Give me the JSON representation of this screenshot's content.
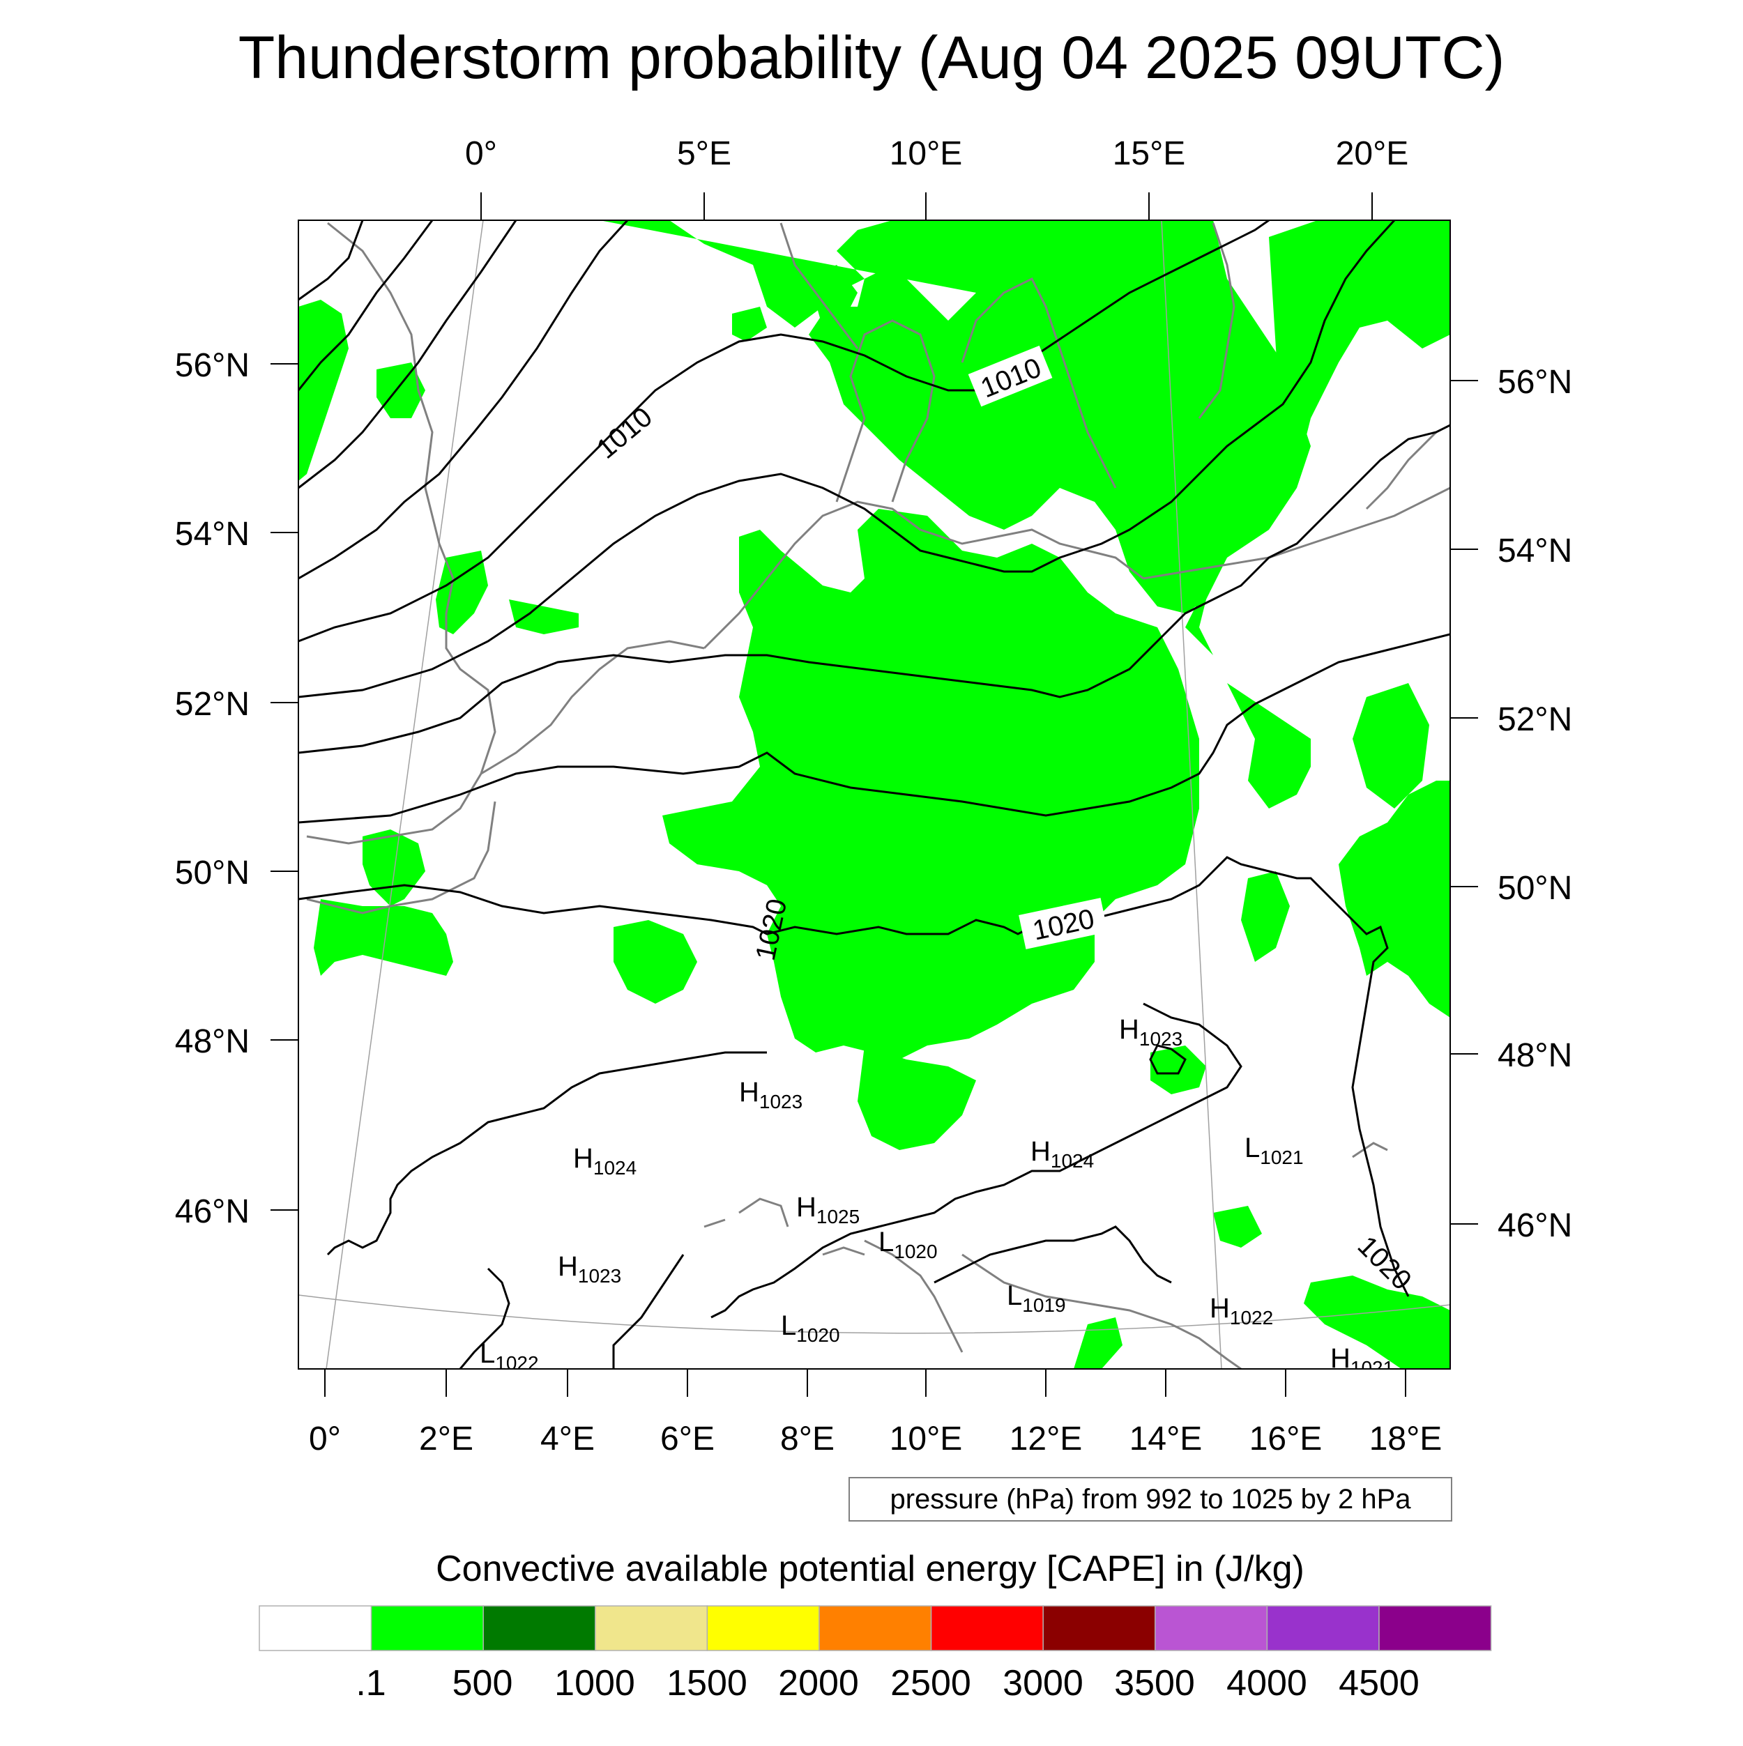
{
  "title": "Thunderstorm probability (Aug 04 2025 09UTC)",
  "axes": {
    "top_lon_labels": [
      "0°",
      "5°E",
      "10°E",
      "15°E",
      "20°E"
    ],
    "bottom_lon_labels": [
      "0°",
      "2°E",
      "4°E",
      "6°E",
      "8°E",
      "10°E",
      "12°E",
      "14°E",
      "16°E",
      "18°E"
    ],
    "left_lat_labels": [
      "56°N",
      "54°N",
      "52°N",
      "50°N",
      "48°N",
      "46°N"
    ],
    "right_lat_labels": [
      "56°N",
      "54°N",
      "52°N",
      "50°N",
      "48°N",
      "46°N"
    ]
  },
  "isobar_labels": [
    "1010",
    "1010",
    "1020",
    "1020",
    "1020"
  ],
  "pressure_centers": [
    {
      "kind": "H",
      "value": "1023"
    },
    {
      "kind": "H",
      "value": "1023"
    },
    {
      "kind": "H",
      "value": "1024"
    },
    {
      "kind": "H",
      "value": "1024"
    },
    {
      "kind": "L",
      "value": "1021"
    },
    {
      "kind": "H",
      "value": "1025"
    },
    {
      "kind": "L",
      "value": "1020"
    },
    {
      "kind": "H",
      "value": "1023"
    },
    {
      "kind": "L",
      "value": "1019"
    },
    {
      "kind": "H",
      "value": "1022"
    },
    {
      "kind": "L",
      "value": "1020"
    },
    {
      "kind": "L",
      "value": "1022"
    },
    {
      "kind": "H",
      "value": "1021"
    }
  ],
  "contour_info": "pressure (hPa) from 992 to 1025 by 2 hPa",
  "legend": {
    "title": "Convective available potential energy [CAPE] in (J/kg)",
    "tick_labels": [
      ".1",
      "500",
      "1000",
      "1500",
      "2000",
      "2500",
      "3000",
      "3500",
      "4000",
      "4500"
    ],
    "colors": [
      "#ffffff",
      "#00ff00",
      "#007a00",
      "#f0e68c",
      "#ffff00",
      "#ff8000",
      "#ff0000",
      "#8b0000",
      "#ba55d3",
      "#9932cc",
      "#8b008b"
    ]
  },
  "colors": {
    "cape_low": "#00ff00",
    "isobar": "#000000",
    "coastline": "#808080",
    "gridline": "#a0a0a0"
  }
}
